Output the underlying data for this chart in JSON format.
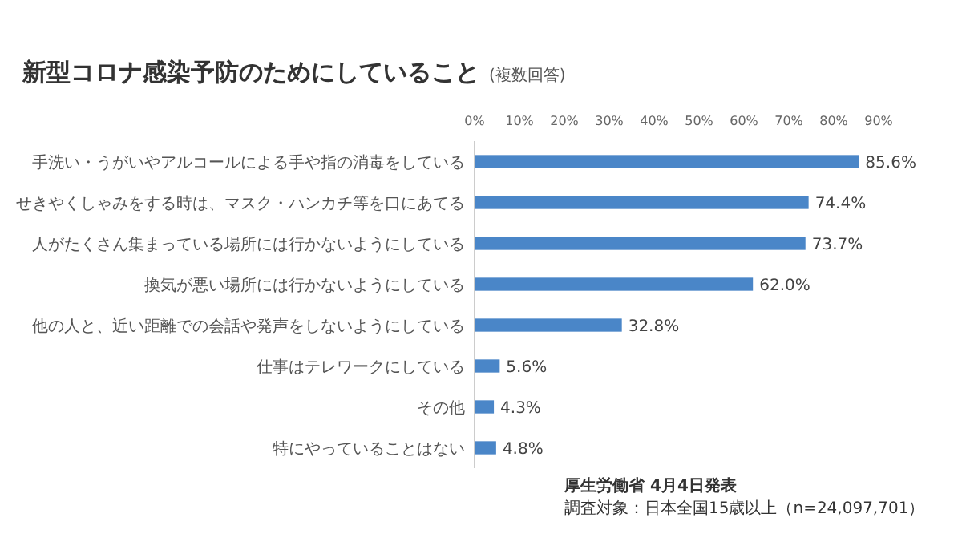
{
  "chart_data": {
    "type": "bar",
    "orientation": "horizontal",
    "title": "新型コロナ感染予防のためにしていること",
    "subtitle": "(複数回答)",
    "categories": [
      "手洗い・うがいやアルコールによる手や指の消毒をしている",
      "せきやくしゃみをする時は、マスク・ハンカチ等を口にあてる",
      "人がたくさん集まっている場所には行かないようにしている",
      "換気が悪い場所には行かないようにしている",
      "他の人と、近い距離での会話や発声をしないようにしている",
      "仕事はテレワークにしている",
      "その他",
      "特にやっていることはない"
    ],
    "values": [
      85.6,
      74.4,
      73.7,
      62.0,
      32.8,
      5.6,
      4.3,
      4.8
    ],
    "value_labels": [
      "85.6%",
      "74.4%",
      "73.7%",
      "62.0%",
      "32.8%",
      "5.6%",
      "4.3%",
      "4.8%"
    ],
    "color": "#4a86c8",
    "xlim": [
      0,
      90
    ],
    "xticks": [
      {
        "value": 0,
        "label": "0%"
      },
      {
        "value": 10,
        "label": "10%"
      },
      {
        "value": 20,
        "label": "20%"
      },
      {
        "value": 30,
        "label": "30%"
      },
      {
        "value": 40,
        "label": "40%"
      },
      {
        "value": 50,
        "label": "50%"
      },
      {
        "value": 60,
        "label": "60%"
      },
      {
        "value": 70,
        "label": "70%"
      },
      {
        "value": 80,
        "label": "80%"
      },
      {
        "value": 90,
        "label": "90%"
      }
    ],
    "annotations": [
      "厚生労働省 4月4日発表",
      "調査対象：日本全国15歳以上（n=24,097,701）"
    ]
  }
}
